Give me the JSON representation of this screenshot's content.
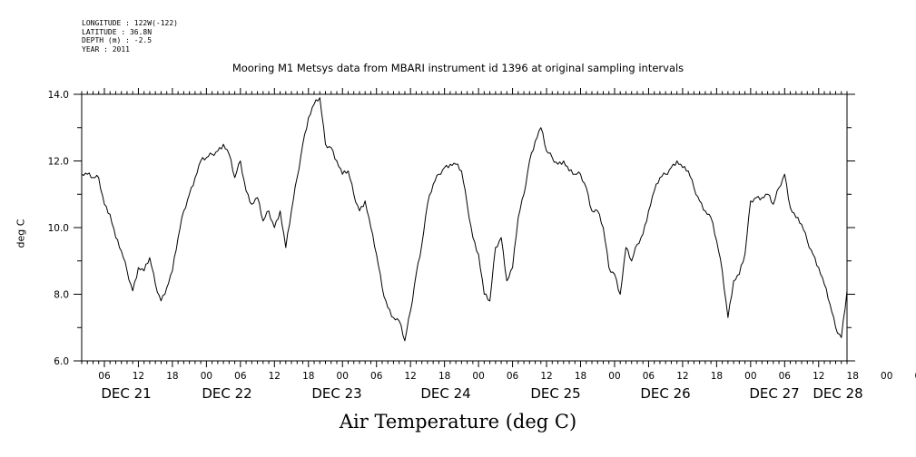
{
  "header": {
    "longitude": "LONGITUDE : 122W(-122)",
    "latitude": "LATITUDE : 36.8N",
    "depth": "DEPTH (m) : -2.5",
    "year": "YEAR : 2011"
  },
  "chart_data": {
    "type": "line",
    "title": "Mooring M1 Metsys data from MBARI instrument id 1396 at original sampling intervals",
    "xlabel": "Air Temperature (deg C)",
    "ylabel": "deg C",
    "ylim": [
      6.0,
      14.0
    ],
    "yticks": [
      "6.0",
      "8.0",
      "10.0",
      "12.0",
      "14.0"
    ],
    "xlim_hours": [
      2,
      137
    ],
    "hour_ticks": [
      "06",
      "12",
      "18",
      "00",
      "06",
      "12",
      "18",
      "00",
      "06",
      "12",
      "18",
      "00",
      "06",
      "12",
      "18",
      "00",
      "06",
      "12",
      "18",
      "00",
      "06",
      "12",
      "18",
      "00",
      "06",
      "12",
      "18",
      "00"
    ],
    "day_labels": [
      "DEC 21",
      "DEC 22",
      "DEC 23",
      "DEC 24",
      "DEC 25",
      "DEC 26",
      "DEC 27",
      "DEC 28"
    ],
    "grid": false,
    "series": [
      {
        "x": [
          2,
          3,
          4,
          5,
          6,
          7,
          8,
          9,
          10,
          11,
          12,
          13,
          14,
          15,
          16,
          17,
          18,
          19,
          20,
          21,
          22,
          23,
          24,
          25,
          26,
          27,
          28,
          29,
          30,
          31,
          32,
          33,
          34,
          35,
          36,
          37,
          38,
          39,
          40,
          41,
          42,
          43,
          44,
          45,
          46,
          47,
          48,
          49,
          50,
          51,
          52,
          53,
          54,
          55,
          56,
          57,
          58,
          59,
          60,
          61,
          62,
          63,
          64,
          65,
          66,
          67,
          68,
          69,
          70,
          71,
          72,
          73,
          74,
          75,
          76,
          77,
          78,
          79,
          80,
          81,
          82,
          83,
          84,
          85,
          86,
          87,
          88,
          89,
          90,
          91,
          92,
          93,
          94,
          95,
          96,
          97,
          98,
          99,
          100,
          101,
          102,
          103,
          104,
          105,
          106,
          107,
          108,
          109,
          110,
          111,
          112,
          113,
          114,
          115,
          116,
          117,
          118,
          119,
          120,
          121,
          122,
          123,
          124,
          125,
          126,
          127,
          128,
          129,
          130,
          131,
          132,
          133,
          134,
          135,
          136,
          137
        ],
        "y": [
          11.6,
          11.6,
          11.5,
          11.5,
          10.7,
          10.4,
          9.7,
          9.3,
          8.7,
          8.1,
          8.8,
          8.7,
          9.1,
          8.3,
          7.8,
          8.2,
          8.7,
          9.7,
          10.5,
          11.0,
          11.5,
          12.0,
          12.1,
          12.2,
          12.3,
          12.5,
          12.2,
          11.5,
          12.0,
          11.1,
          10.7,
          10.9,
          10.2,
          10.5,
          10.0,
          10.5,
          9.4,
          10.5,
          11.5,
          12.5,
          13.3,
          13.7,
          13.9,
          12.5,
          12.4,
          12.0,
          11.6,
          11.7,
          11.0,
          10.5,
          10.8,
          10.0,
          9.2,
          8.2,
          7.6,
          7.3,
          7.2,
          6.6,
          7.5,
          8.6,
          9.5,
          10.7,
          11.3,
          11.6,
          11.8,
          11.9,
          11.9,
          11.7,
          10.7,
          9.7,
          9.2,
          8.0,
          7.8,
          9.4,
          9.7,
          8.4,
          8.8,
          10.3,
          11.0,
          12.0,
          12.6,
          13.0,
          12.3,
          12.1,
          11.9,
          12.0,
          11.7,
          11.6,
          11.6,
          11.2,
          10.5,
          10.5,
          10.0,
          8.8,
          8.6,
          8.0,
          9.4,
          9.0,
          9.5,
          9.8,
          10.5,
          11.1,
          11.5,
          11.6,
          11.8,
          12.0,
          11.8,
          11.7,
          11.2,
          10.8,
          10.5,
          10.3,
          9.6,
          8.7,
          7.3,
          8.4,
          8.6,
          9.2,
          10.8,
          10.9,
          10.9,
          11.0,
          10.7,
          11.2,
          11.6,
          10.6,
          10.3,
          10.1,
          9.6,
          9.2,
          8.8,
          8.3,
          7.7,
          7.0,
          6.7,
          8.1
        ]
      }
    ]
  }
}
